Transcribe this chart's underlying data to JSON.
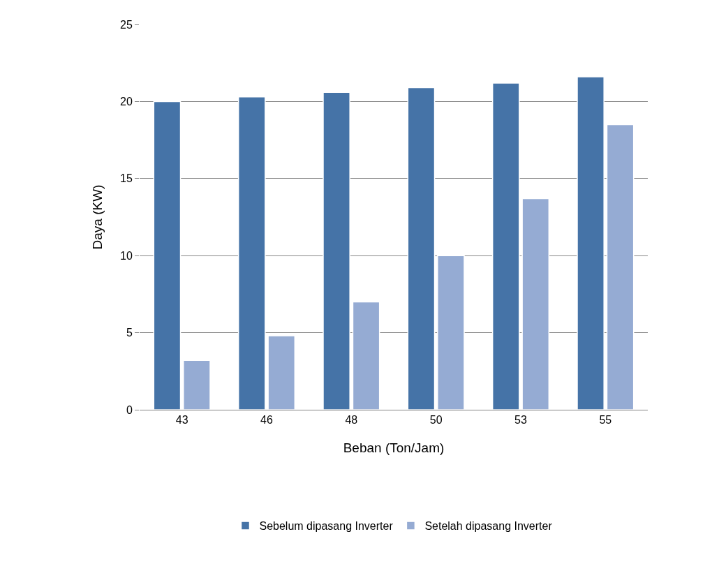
{
  "chart_data": {
    "type": "bar",
    "xlabel": "Beban (Ton/Jam)",
    "ylabel": "Daya (KW)",
    "categories": [
      "43",
      "46",
      "48",
      "50",
      "53",
      "55"
    ],
    "series": [
      {
        "name": "Sebelum dipasang Inverter",
        "color": "#4573a7",
        "values": [
          20.0,
          20.3,
          20.6,
          20.9,
          21.2,
          21.6
        ]
      },
      {
        "name": "Setelah dipasang Inverter",
        "color": "#95abd3",
        "values": [
          3.2,
          4.8,
          7.0,
          10.0,
          13.7,
          18.5
        ]
      }
    ],
    "ylim": [
      0,
      25
    ],
    "yticks": [
      0,
      5,
      10,
      15,
      20,
      25
    ],
    "grid": "y",
    "legend": "bottom"
  }
}
